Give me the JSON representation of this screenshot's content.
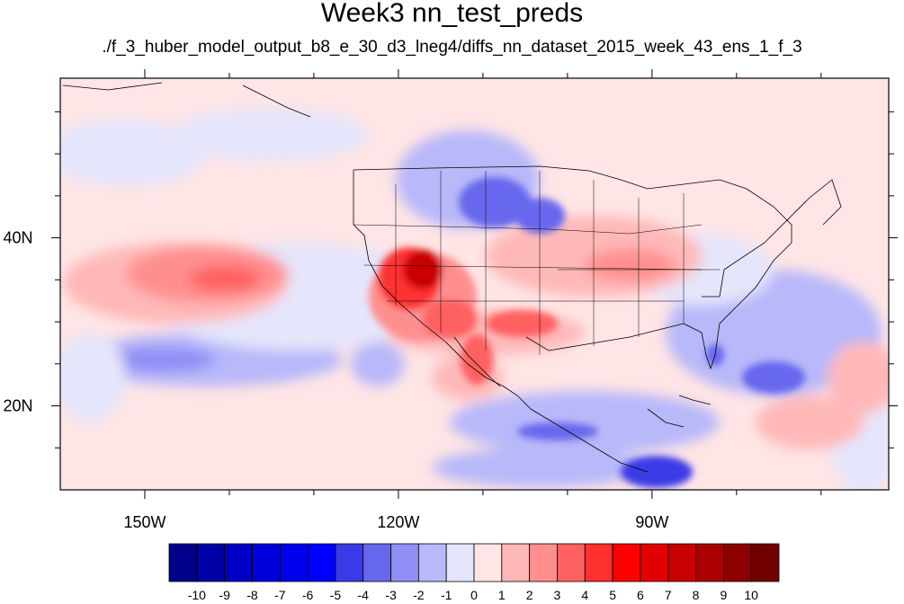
{
  "title": "Week3 nn_test_preds",
  "subtitle": "./f_3_huber_model_output_b8_e_30_d3_lneg4/diffs_nn_dataset_2015_week_43_ens_1_f_3",
  "map": {
    "lon_range": [
      -160,
      -62
    ],
    "lat_range": [
      10,
      59
    ],
    "lon_labels": [
      {
        "lon": -150,
        "text": "150W"
      },
      {
        "lon": -120,
        "text": "120W"
      },
      {
        "lon": -90,
        "text": "90W"
      }
    ],
    "lat_labels": [
      {
        "lat": 40,
        "text": "40N"
      },
      {
        "lat": 20,
        "text": "20N"
      }
    ]
  },
  "colorbar": {
    "labels": [
      "-10",
      "-9",
      "-8",
      "-7",
      "-6",
      "-5",
      "-4",
      "-3",
      "-2",
      "-1",
      "0",
      "1",
      "2",
      "3",
      "4",
      "5",
      "6",
      "7",
      "8",
      "9",
      "10"
    ],
    "colors": [
      "#00008c",
      "#0000a8",
      "#0000c4",
      "#0000dc",
      "#0000ee",
      "#0000ff",
      "#3a3ae6",
      "#6767ee",
      "#8f8ff5",
      "#b8b8fa",
      "#e5e5fb",
      "#ffe5e5",
      "#ffb8b8",
      "#ff8f8f",
      "#ff6060",
      "#ff3030",
      "#ff0000",
      "#e20000",
      "#c80000",
      "#aa0000",
      "#8c0000",
      "#700000"
    ]
  }
}
